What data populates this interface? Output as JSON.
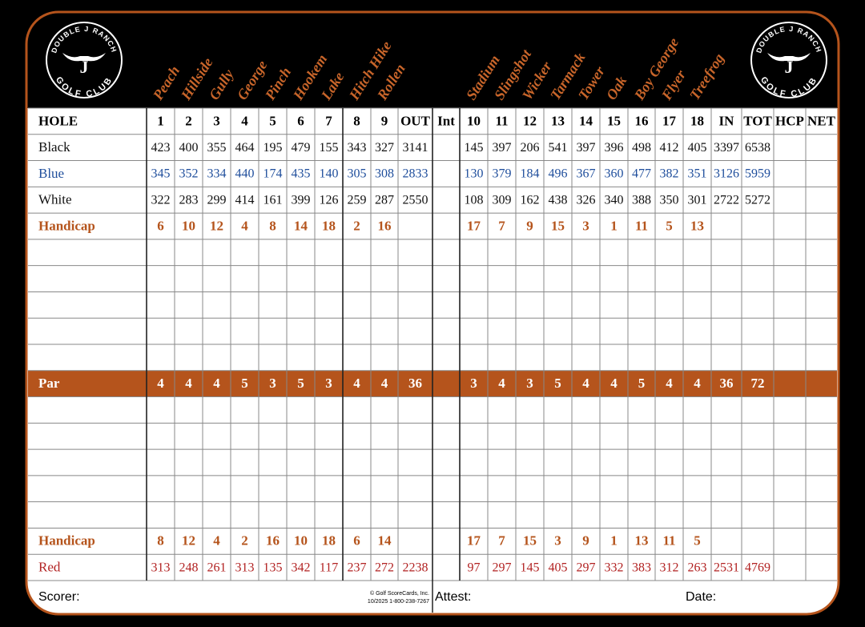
{
  "club": {
    "top": "DOUBLE J RANCH",
    "bottom": "GOLF CLUB",
    "initial": "J"
  },
  "hole_names": [
    "Peach",
    "Hillside",
    "Gully",
    "George",
    "Pinch",
    "Hookem",
    "Lake",
    "Hitch Hike",
    "Rollen",
    "Stadium",
    "Slingshot",
    "Wicker",
    "Tarmack",
    "Tower",
    "Oak",
    "Boy George",
    "Flyer",
    "Treefrog"
  ],
  "header": [
    "HOLE",
    "1",
    "2",
    "3",
    "4",
    "5",
    "6",
    "7",
    "8",
    "9",
    "OUT",
    "Int",
    "10",
    "11",
    "12",
    "13",
    "14",
    "15",
    "16",
    "17",
    "18",
    "IN",
    "TOT",
    "HCP",
    "NET"
  ],
  "rows": [
    {
      "label": "Black",
      "color": "#111111",
      "cells": [
        423,
        400,
        355,
        464,
        195,
        479,
        155,
        343,
        327,
        3141,
        null,
        145,
        397,
        206,
        541,
        397,
        396,
        498,
        412,
        405,
        3397,
        6538,
        null,
        null
      ]
    },
    {
      "label": "Blue",
      "color": "#1f4e9c",
      "cells": [
        345,
        352,
        334,
        440,
        174,
        435,
        140,
        305,
        308,
        2833,
        null,
        130,
        379,
        184,
        496,
        367,
        360,
        477,
        382,
        351,
        3126,
        5959,
        null,
        null
      ]
    },
    {
      "label": "White",
      "color": "#111111",
      "cells": [
        322,
        283,
        299,
        414,
        161,
        399,
        126,
        259,
        287,
        2550,
        null,
        108,
        309,
        162,
        438,
        326,
        340,
        388,
        350,
        301,
        2722,
        5272,
        null,
        null
      ]
    },
    {
      "label": "Handicap",
      "color": "#b5541c",
      "bold": true,
      "cells": [
        6,
        10,
        12,
        4,
        8,
        14,
        18,
        2,
        16,
        null,
        null,
        17,
        7,
        9,
        15,
        3,
        1,
        11,
        5,
        13,
        null,
        null,
        null,
        null
      ]
    },
    null,
    null,
    null,
    null,
    null,
    {
      "label": "Par",
      "color": "#ffffff",
      "fill": "#b5541c",
      "bold": true,
      "cells": [
        4,
        4,
        4,
        5,
        3,
        5,
        3,
        4,
        4,
        36,
        null,
        3,
        4,
        3,
        5,
        4,
        4,
        5,
        4,
        4,
        36,
        72,
        null,
        null
      ]
    },
    null,
    null,
    null,
    null,
    null,
    {
      "label": "Handicap",
      "color": "#b5541c",
      "bold": true,
      "cells": [
        8,
        12,
        4,
        2,
        16,
        10,
        18,
        6,
        14,
        null,
        null,
        17,
        7,
        15,
        3,
        9,
        1,
        13,
        11,
        5,
        null,
        null,
        null,
        null
      ]
    },
    {
      "label": "Red",
      "color": "#b22222",
      "cells": [
        313,
        248,
        261,
        313,
        135,
        342,
        117,
        237,
        272,
        2238,
        null,
        97,
        297,
        145,
        405,
        297,
        332,
        383,
        312,
        263,
        2531,
        4769,
        null,
        null
      ]
    }
  ],
  "footer": {
    "scorer": "Scorer:",
    "copyright": "© Golf ScoreCards, Inc.",
    "contact": "10/2025  1-800-238-7267",
    "attest": "Attest:",
    "date": "Date:"
  }
}
